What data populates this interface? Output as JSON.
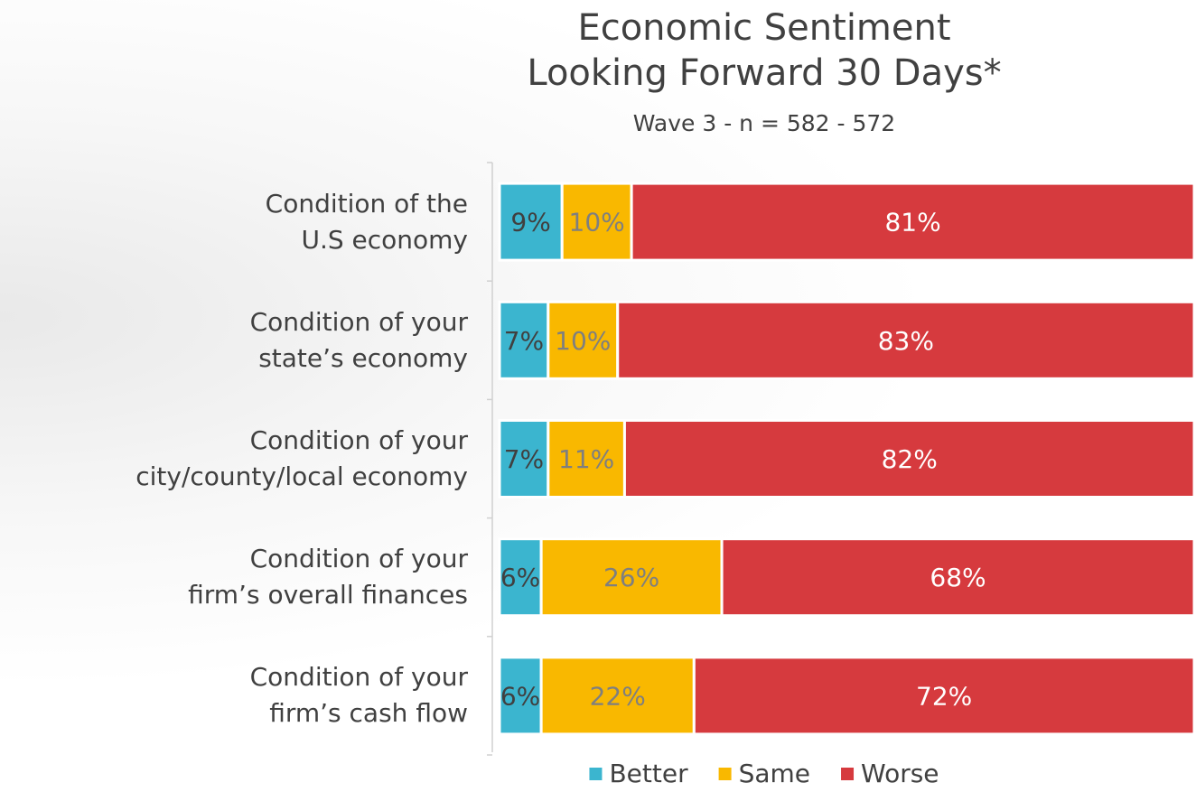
{
  "chart_data": {
    "type": "stacked_bar_horizontal",
    "title": "Economic Sentiment\nLooking Forward 30 Days*",
    "subtitle": "Wave 3 - n = 582 - 572",
    "categories": [
      "Condition of the\nU.S economy",
      "Condition of your\nstate’s economy",
      "Condition of your\ncity/county/local economy",
      "Condition of your\nfirm’s overall finances",
      "Condition of your\nfirm’s cash flow"
    ],
    "xlim": [
      0,
      100
    ],
    "series": [
      {
        "name": "Better",
        "color": "#3bb5cf",
        "label_color": "#404040",
        "values": [
          9,
          7,
          7,
          6,
          6
        ],
        "value_labels": [
          "9%",
          "7%",
          "7%",
          "6%",
          "6%"
        ]
      },
      {
        "name": "Same",
        "color": "#f9b800",
        "label_color": "#7f7f7f",
        "values": [
          10,
          10,
          11,
          26,
          22
        ],
        "value_labels": [
          "10%",
          "10%",
          "11%",
          "26%",
          "22%"
        ]
      },
      {
        "name": "Worse",
        "color": "#d63a3e",
        "label_color": "#ffffff",
        "values": [
          81,
          83,
          82,
          68,
          72
        ],
        "value_labels": [
          "81%",
          "83%",
          "82%",
          "68%",
          "72%"
        ]
      }
    ],
    "legend": "bottom"
  }
}
